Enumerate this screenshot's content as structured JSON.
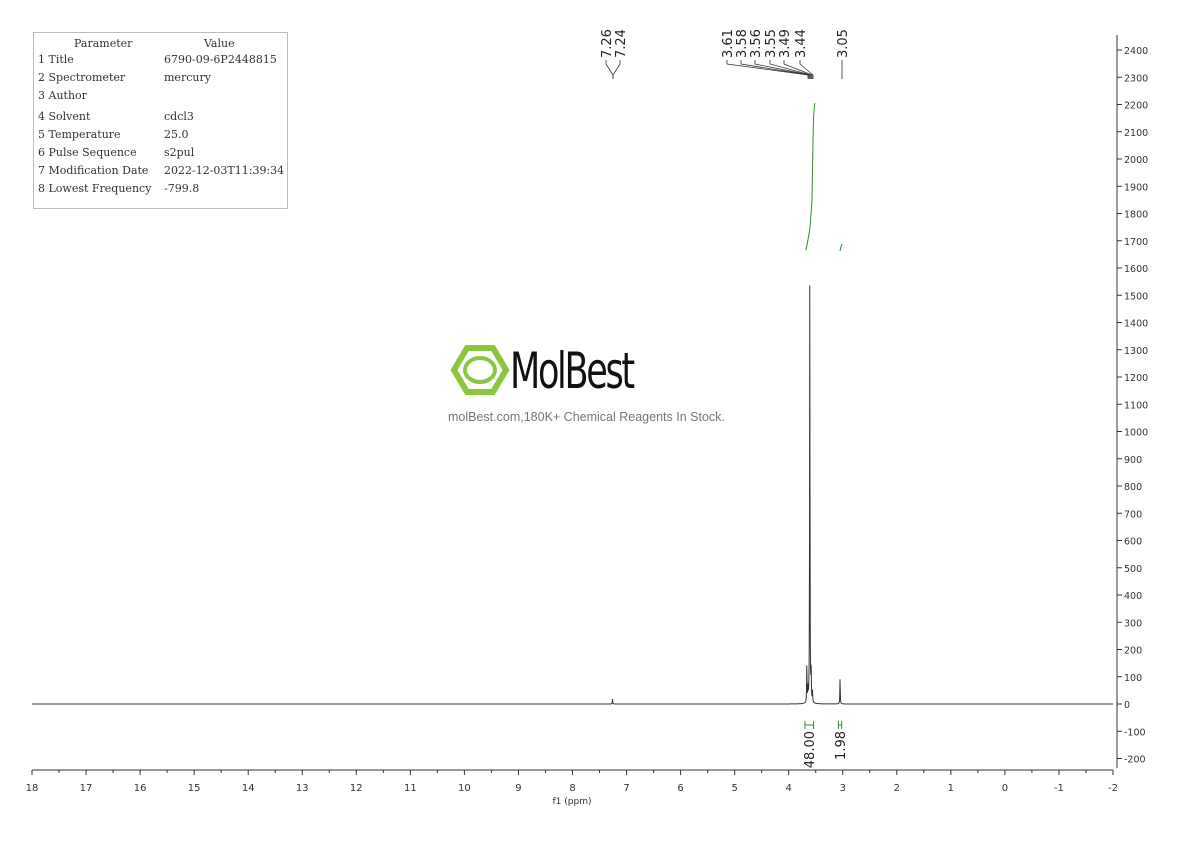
{
  "parameters": {
    "header": [
      "Parameter",
      "Value"
    ],
    "rows": [
      [
        "1 Title",
        "6790-09-6P2448815"
      ],
      [
        "2 Spectrometer",
        "mercury"
      ],
      [
        "3 Author",
        ""
      ],
      [
        "4 Solvent",
        "cdcl3"
      ],
      [
        "5 Temperature",
        "25.0"
      ],
      [
        "6 Pulse Sequence",
        "s2pul"
      ],
      [
        "7 Modification Date",
        "2022-12-03T11:39:34"
      ],
      [
        "8 Lowest Frequency",
        "-799.8"
      ]
    ]
  },
  "watermark": {
    "brand": "MolBest",
    "tagline": "molBest.com,180K+ Chemical Reagents In Stock.",
    "color": "#8cc63f"
  },
  "chart_data": {
    "type": "line",
    "xlabel": "f1 (ppm)",
    "xlim": [
      18,
      -2
    ],
    "ylim": [
      -200,
      2400
    ],
    "x_ticks": [
      18,
      17,
      16,
      15,
      14,
      13,
      12,
      11,
      10,
      9,
      8,
      7,
      6,
      5,
      4,
      3,
      2,
      1,
      0,
      -1,
      -2
    ],
    "y_ticks": [
      -200,
      -100,
      0,
      100,
      200,
      300,
      400,
      500,
      600,
      700,
      800,
      900,
      1000,
      1100,
      1200,
      1300,
      1400,
      1500,
      1600,
      1700,
      1800,
      1900,
      2000,
      2100,
      2200,
      2300,
      2400
    ],
    "peaks": [
      {
        "ppm": 7.26,
        "height": 18
      },
      {
        "ppm": 3.665,
        "height": 140
      },
      {
        "ppm": 3.645,
        "height": 60
      },
      {
        "ppm": 3.61,
        "height": 1560
      },
      {
        "ppm": 3.585,
        "height": 130
      },
      {
        "ppm": 3.56,
        "height": 40
      },
      {
        "ppm": 3.05,
        "height": 95
      }
    ],
    "peak_labels": {
      "group1": [
        "7.26",
        "7.24"
      ],
      "group2": [
        "3.61",
        "3.58",
        "3.56",
        "3.55",
        "3.49",
        "3.44"
      ],
      "group3": [
        "3.05"
      ]
    },
    "integrals": [
      {
        "from": 3.7,
        "to": 3.54,
        "value": "48.00"
      },
      {
        "from": 3.08,
        "to": 3.02,
        "value": "1.98"
      }
    ],
    "colors": {
      "spectrum": "#333333",
      "integral": "#2e8b2e"
    }
  }
}
